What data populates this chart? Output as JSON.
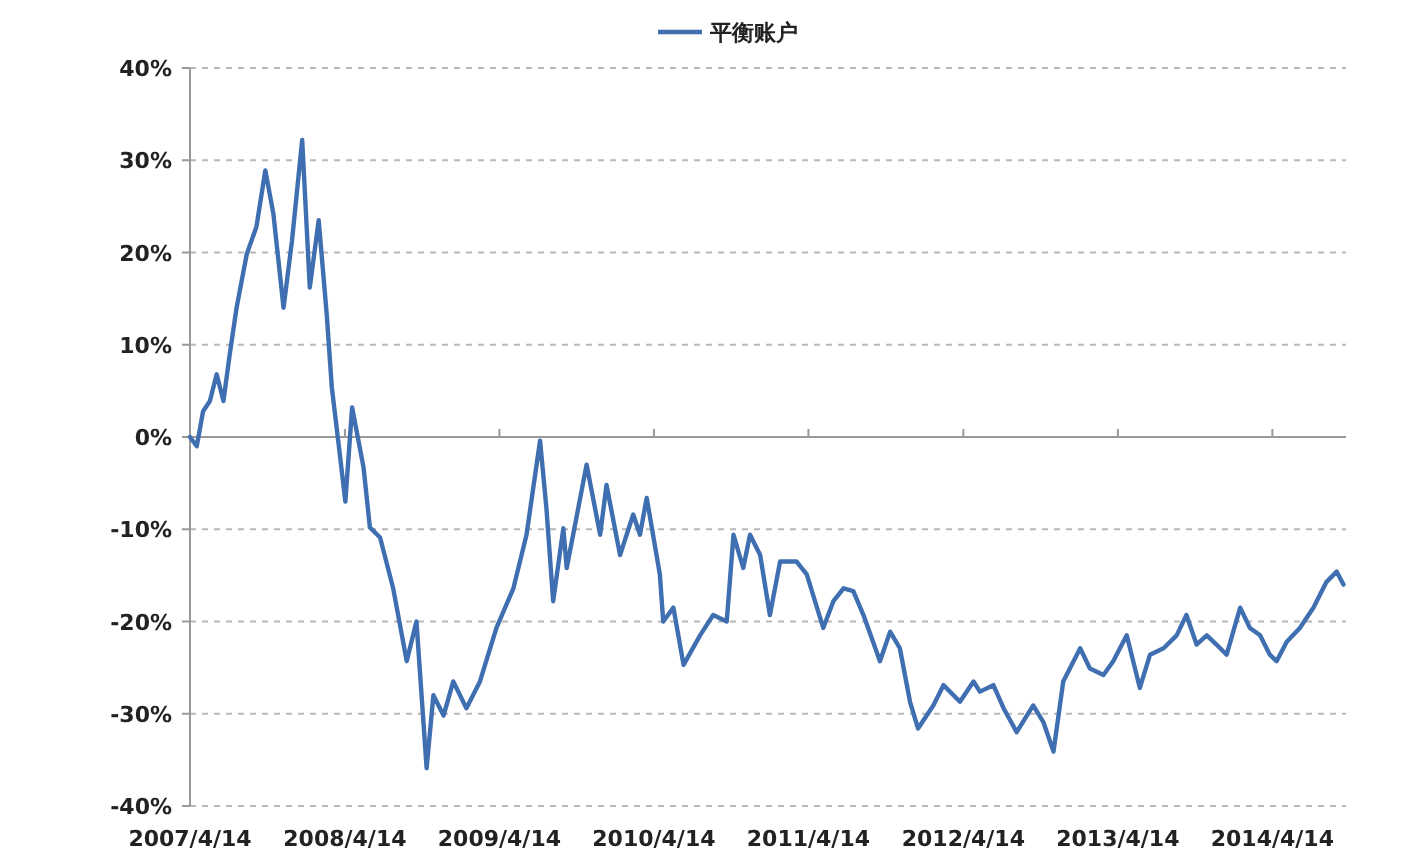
{
  "chart_data": {
    "type": "line",
    "x": [
      "2007-04-14",
      "2007-04-30",
      "2007-05-15",
      "2007-05-31",
      "2007-06-16",
      "2007-07-02",
      "2007-07-17",
      "2007-08-02",
      "2007-08-26",
      "2007-09-18",
      "2007-10-09",
      "2007-10-28",
      "2007-11-21",
      "2007-12-11",
      "2008-01-04",
      "2008-01-22",
      "2008-02-12",
      "2008-03-02",
      "2008-03-14",
      "2008-04-02",
      "2008-04-15",
      "2008-05-01",
      "2008-05-28",
      "2008-06-12",
      "2008-07-06",
      "2008-08-06",
      "2008-09-07",
      "2008-09-30",
      "2008-10-24",
      "2008-11-09",
      "2008-12-03",
      "2008-12-26",
      "2009-01-26",
      "2009-02-27",
      "2009-04-07",
      "2009-05-17",
      "2009-06-17",
      "2009-07-19",
      "2009-08-03",
      "2009-08-19",
      "2009-09-12",
      "2009-09-20",
      "2009-11-06",
      "2009-12-08",
      "2009-12-23",
      "2010-01-24",
      "2010-02-24",
      "2010-03-12",
      "2010-03-28",
      "2010-04-28",
      "2010-05-06",
      "2010-05-30",
      "2010-06-23",
      "2010-08-01",
      "2010-09-01",
      "2010-10-03",
      "2010-10-19",
      "2010-11-11",
      "2010-11-27",
      "2010-12-21",
      "2011-01-13",
      "2011-02-06",
      "2011-03-17",
      "2011-04-10",
      "2011-05-19",
      "2011-06-12",
      "2011-07-06",
      "2011-07-29",
      "2011-08-22",
      "2011-09-30",
      "2011-10-24",
      "2011-11-16",
      "2011-12-10",
      "2011-12-29",
      "2012-02-03",
      "2012-02-27",
      "2012-04-06",
      "2012-05-08",
      "2012-05-23",
      "2012-06-24",
      "2012-07-18",
      "2012-08-18",
      "2012-09-26",
      "2012-10-20",
      "2012-11-13",
      "2012-12-06",
      "2013-01-15",
      "2013-02-07",
      "2013-03-11",
      "2013-04-03",
      "2013-05-05",
      "2013-06-05",
      "2013-06-29",
      "2013-07-31",
      "2013-08-31",
      "2013-09-23",
      "2013-10-17",
      "2013-11-10",
      "2013-12-03",
      "2013-12-27",
      "2014-01-28",
      "2014-02-20",
      "2014-03-16",
      "2014-04-08",
      "2014-04-24",
      "2014-05-18",
      "2014-06-18",
      "2014-07-20",
      "2014-08-20",
      "2014-09-13",
      "2014-09-29"
    ],
    "series": [
      {
        "name": "平衡账户",
        "color": "#3f6fb0",
        "values": [
          0,
          -1,
          2.8,
          3.9,
          6.8,
          3.9,
          9,
          14,
          19.8,
          22.8,
          28.9,
          24.2,
          14,
          21.3,
          32.2,
          16.2,
          23.5,
          13.3,
          5.4,
          -1.9,
          -7,
          3.2,
          -3.3,
          -9.8,
          -10.9,
          -16.4,
          -24.3,
          -20,
          -35.9,
          -28,
          -30.2,
          -26.5,
          -29.4,
          -26.5,
          -20.7,
          -16.4,
          -10.6,
          -0.4,
          -7.7,
          -17.8,
          -9.9,
          -14.2,
          -3,
          -10.6,
          -5.2,
          -12.8,
          -8.4,
          -10.6,
          -6.6,
          -14.9,
          -20,
          -18.5,
          -24.7,
          -21.5,
          -19.3,
          -20,
          -10.6,
          -14.2,
          -10.6,
          -12.8,
          -19.3,
          -13.5,
          -13.5,
          -14.9,
          -20.7,
          -17.8,
          -16.4,
          -16.7,
          -19.3,
          -24.3,
          -21.1,
          -22.9,
          -28.7,
          -31.6,
          -29.1,
          -26.9,
          -28.7,
          -26.5,
          -27.6,
          -26.9,
          -29.4,
          -32,
          -29.1,
          -30.9,
          -34.1,
          -26.5,
          -22.9,
          -25.1,
          -25.8,
          -24.3,
          -21.5,
          -27.2,
          -23.6,
          -22.9,
          -21.5,
          -19.3,
          -22.5,
          -21.5,
          -22.5,
          -23.6,
          -18.5,
          -20.7,
          -21.5,
          -23.6,
          -24.3,
          -22.2,
          -20.7,
          -18.5,
          -15.7,
          -14.6,
          -16
        ]
      }
    ],
    "xlim": [
      "2007-04-14",
      "2014-10-05"
    ],
    "xticks": [
      {
        "value": "2007-04-14",
        "label": "2007/4/14"
      },
      {
        "value": "2008-04-14",
        "label": "2008/4/14"
      },
      {
        "value": "2009-04-14",
        "label": "2009/4/14"
      },
      {
        "value": "2010-04-14",
        "label": "2010/4/14"
      },
      {
        "value": "2011-04-14",
        "label": "2011/4/14"
      },
      {
        "value": "2012-04-14",
        "label": "2012/4/14"
      },
      {
        "value": "2013-04-14",
        "label": "2013/4/14"
      },
      {
        "value": "2014-04-14",
        "label": "2014/4/14"
      }
    ],
    "ylim": [
      -40,
      40
    ],
    "yticks": [
      {
        "value": -40,
        "label": "-40%"
      },
      {
        "value": -30,
        "label": "-30%"
      },
      {
        "value": -20,
        "label": "-20%"
      },
      {
        "value": -10,
        "label": "-10%"
      },
      {
        "value": 0,
        "label": "0%"
      },
      {
        "value": 10,
        "label": "10%"
      },
      {
        "value": 20,
        "label": "20%"
      },
      {
        "value": 30,
        "label": "30%"
      },
      {
        "value": 40,
        "label": "40%"
      }
    ],
    "grid": "y",
    "legend": "top",
    "marker": "none",
    "line_style": "solid"
  }
}
